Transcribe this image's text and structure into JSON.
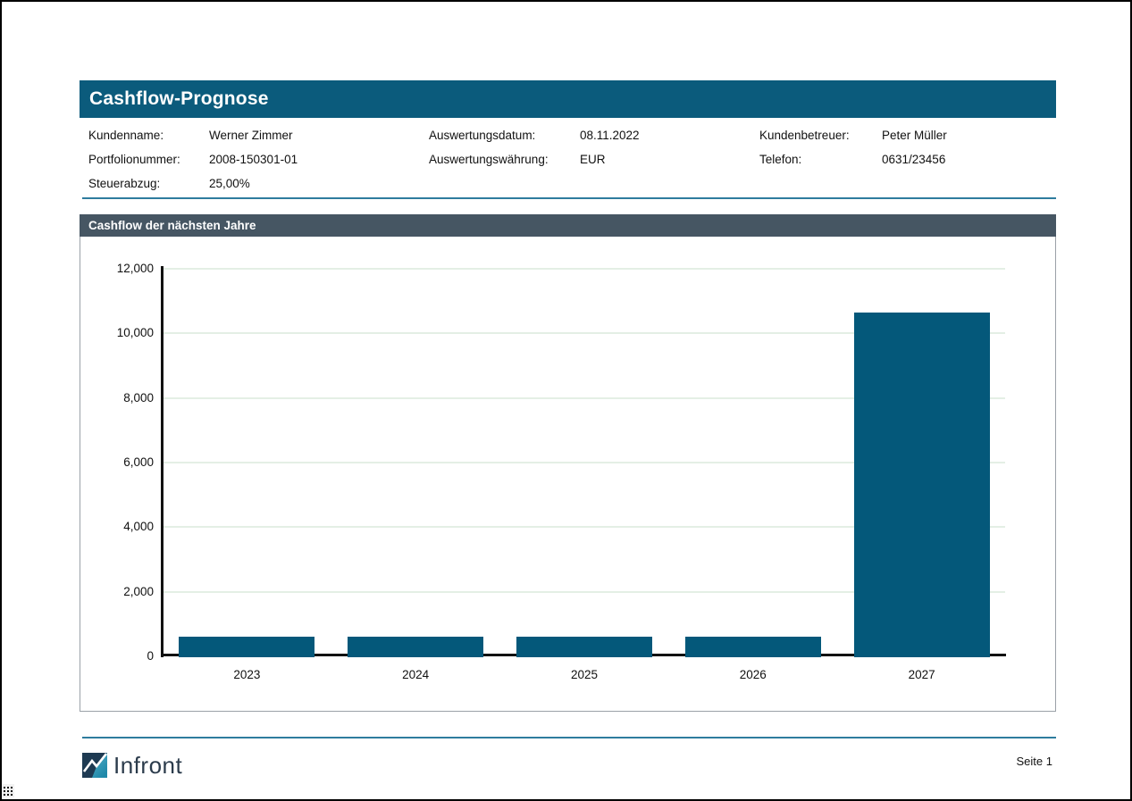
{
  "page": {
    "title": "Cashflow-Prognose",
    "page_number_label": "Seite 1",
    "logo_text": "Infront"
  },
  "meta": {
    "fields": [
      {
        "label": "Kundenname:",
        "value": "Werner Zimmer"
      },
      {
        "label": "Portfolionummer:",
        "value": "2008-150301-01"
      },
      {
        "label": "Steuerabzug:",
        "value": "25,00%"
      },
      {
        "label": "Auswertungsdatum:",
        "value": "08.11.2022"
      },
      {
        "label": "Auswertungswährung:",
        "value": "EUR"
      },
      {
        "label": "Kundenbetreuer:",
        "value": "Peter Müller"
      },
      {
        "label": "Telefon:",
        "value": "0631/23456"
      }
    ]
  },
  "chart_data": {
    "type": "bar",
    "title": "Cashflow der nächsten Jahre",
    "categories": [
      "2023",
      "2024",
      "2025",
      "2026",
      "2027"
    ],
    "values": [
      640,
      640,
      640,
      640,
      10670
    ],
    "xlabel": "",
    "ylabel": "",
    "ylim": [
      0,
      12000
    ],
    "ytick_step": 2000,
    "ytick_labels": [
      "0",
      "2,000",
      "4,000",
      "6,000",
      "8,000",
      "10,000",
      "12,000"
    ],
    "grid": true,
    "legend": false,
    "bar_color": "#04587A"
  },
  "colors": {
    "title_band": "#0B5B7C",
    "panel_header": "#465663",
    "bar": "#04587A",
    "divider_blue": "#2E7C9E",
    "gridline": "#E4EFE5",
    "chart_border": "#9BA1A8",
    "logo_navy": "#1E3A52",
    "logo_teal": "#3FA3BF"
  }
}
